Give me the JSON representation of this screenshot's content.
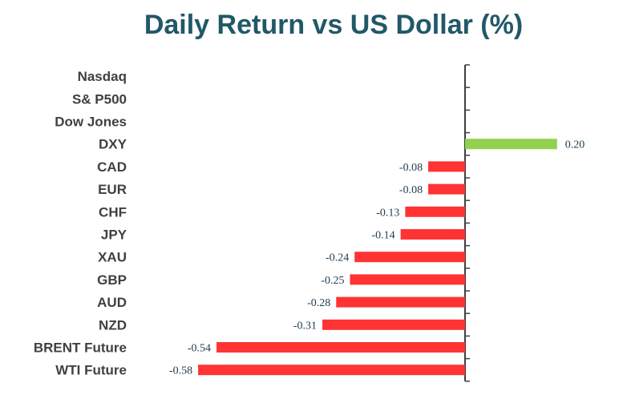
{
  "chart_data": {
    "type": "bar",
    "orientation": "horizontal",
    "title": "Daily Return vs US Dollar (%)",
    "categories": [
      "Nasdaq",
      "S& P500",
      "Dow Jones",
      "DXY",
      "CAD",
      "EUR",
      "CHF",
      "JPY",
      "XAU",
      "GBP",
      "AUD",
      "NZD",
      "BRENT Future",
      "WTI Future"
    ],
    "values": [
      null,
      null,
      null,
      0.2,
      -0.08,
      -0.08,
      -0.13,
      -0.14,
      -0.24,
      -0.25,
      -0.28,
      -0.31,
      -0.54,
      -0.58
    ],
    "value_labels": [
      "",
      "",
      "",
      "0.20",
      "-0.08",
      "-0.08",
      "-0.13",
      "-0.14",
      "-0.24",
      "-0.25",
      "-0.28",
      "-0.31",
      "-0.54",
      "-0.58"
    ],
    "colors": {
      "positive": "#92d050",
      "negative": "#ff3333",
      "axis": "#404040",
      "title": "#215868"
    },
    "grid": false,
    "legend": "none"
  }
}
